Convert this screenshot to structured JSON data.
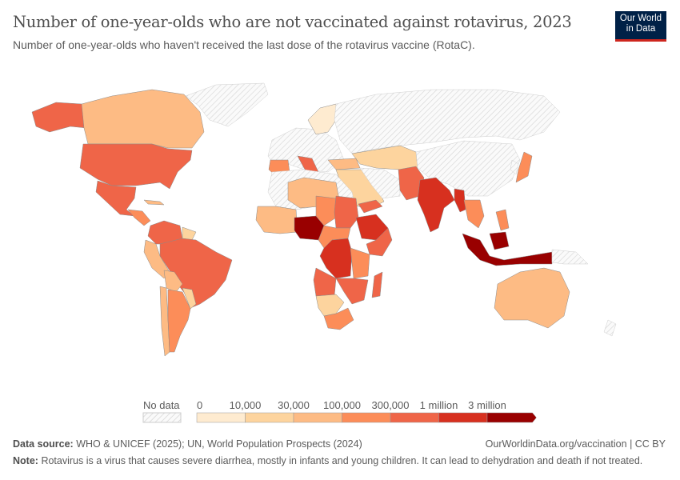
{
  "header": {
    "title": "Number of one-year-olds who are not vaccinated against rotavirus, 2023",
    "subtitle": "Number of one-year-olds who haven't received the last dose of the rotavirus vaccine (RotaC)."
  },
  "logo": {
    "line1": "Our World",
    "line2": "in Data"
  },
  "chart_data": {
    "type": "choropleth-map",
    "title": "Number of one-year-olds who are not vaccinated against rotavirus, 2023",
    "legend": {
      "no_data_label": "No data",
      "ticks": [
        "0",
        "10,000",
        "30,000",
        "100,000",
        "300,000",
        "1 million",
        "3 million"
      ],
      "bin_colors": [
        "#feebd0",
        "#fdd49e",
        "#fdbb84",
        "#fc8d59",
        "#ef6548",
        "#d7301f",
        "#990000"
      ],
      "no_data_color": "#e8e8e8",
      "placement": "bottom-center"
    }
  },
  "footer": {
    "source_label": "Data source:",
    "source": "WHO & UNICEF (2025); UN, World Population Prospects (2024)",
    "url": "OurWorldinData.org/vaccination | CC BY",
    "note_label": "Note:",
    "note": "Rotavirus is a virus that causes severe diarrhea, mostly in infants and young children. It can lead to dehydration and death if not treated."
  }
}
